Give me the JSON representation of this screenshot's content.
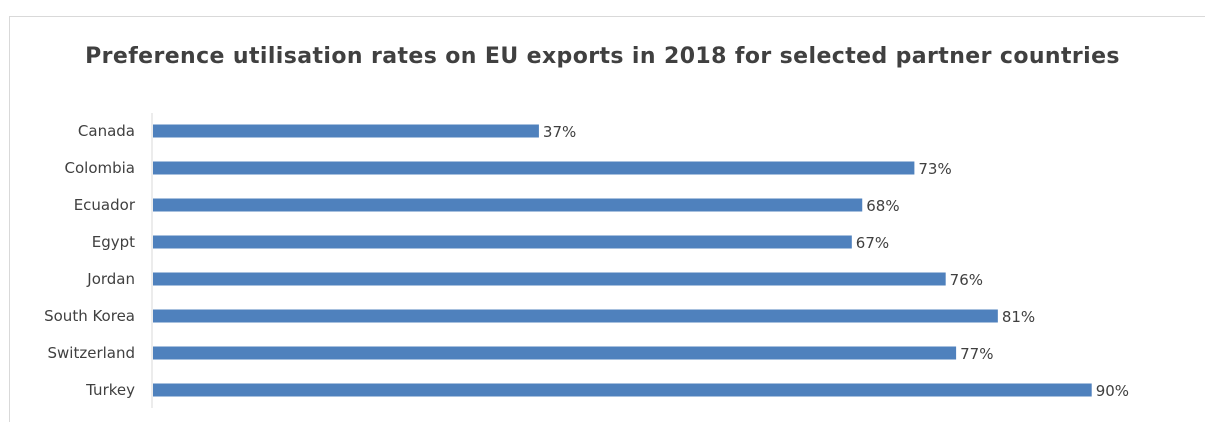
{
  "chart_data": {
    "type": "bar",
    "orientation": "horizontal",
    "title": "Preference utilisation rates on EU exports in 2018 for selected partner countries",
    "categories": [
      "Canada",
      "Colombia",
      "Ecuador",
      "Egypt",
      "Jordan",
      "South Korea",
      "Switzerland",
      "Turkey"
    ],
    "values": [
      37,
      73,
      68,
      67,
      76,
      81,
      77,
      90
    ],
    "value_labels": [
      "37%",
      "73%",
      "68%",
      "67%",
      "76%",
      "81%",
      "77%",
      "90%"
    ],
    "xlabel": "",
    "ylabel": "",
    "xlim": [
      0,
      100
    ],
    "grid": false,
    "legend": "none",
    "bar_color": "#4f81bd",
    "text_color": "#404040",
    "axis_color": "#d9d9d9"
  }
}
